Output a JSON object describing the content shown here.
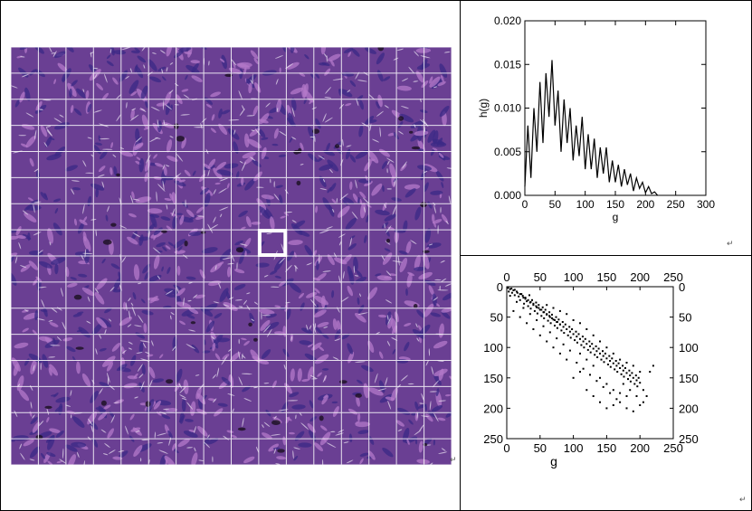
{
  "figure": {
    "tissue_image": {
      "description_icon": "histology-tile-grid-icon",
      "grid_rows": 16,
      "grid_cols": 16,
      "highlight_cell": {
        "row": 7,
        "col": 9
      },
      "colors": {
        "base": "#6a3f93",
        "nucleus": "#3b2a86",
        "fiber": "#b47ac9",
        "grid": "#ffffff"
      }
    },
    "return_marks": {
      "left": "↵",
      "top_right": "↵",
      "bottom_right": "↵"
    }
  },
  "chart_data": [
    {
      "type": "line",
      "title": "",
      "xlabel": "g",
      "ylabel": "h(g)",
      "xlim": [
        0,
        300
      ],
      "ylim": [
        0.0,
        0.02
      ],
      "xticks": [
        "0",
        "50",
        "100",
        "150",
        "200",
        "250",
        "300"
      ],
      "yticks": [
        "0.000",
        "0.005",
        "0.010",
        "0.015",
        "0.020"
      ],
      "x": [
        0,
        5,
        10,
        15,
        20,
        25,
        30,
        35,
        40,
        45,
        50,
        55,
        60,
        65,
        70,
        75,
        80,
        85,
        90,
        95,
        100,
        105,
        110,
        115,
        120,
        125,
        130,
        135,
        140,
        145,
        150,
        155,
        160,
        165,
        170,
        175,
        180,
        185,
        190,
        195,
        200,
        205,
        210,
        215,
        220
      ],
      "y": [
        0.001,
        0.008,
        0.002,
        0.01,
        0.005,
        0.013,
        0.006,
        0.014,
        0.009,
        0.0155,
        0.008,
        0.012,
        0.005,
        0.011,
        0.006,
        0.01,
        0.004,
        0.008,
        0.0045,
        0.009,
        0.003,
        0.007,
        0.003,
        0.0065,
        0.002,
        0.0055,
        0.0025,
        0.0055,
        0.0015,
        0.004,
        0.0015,
        0.0035,
        0.001,
        0.003,
        0.0012,
        0.0025,
        0.0005,
        0.002,
        0.0008,
        0.0015,
        0.0003,
        0.001,
        0.0002,
        0.0004,
        0.0
      ]
    },
    {
      "type": "scatter",
      "title": "",
      "xlabel": "g",
      "ylabel": "",
      "xlim": [
        0,
        250
      ],
      "ylim": [
        0,
        250
      ],
      "y_inverted": true,
      "xticks": [
        "0",
        "50",
        "100",
        "150",
        "200",
        "250"
      ],
      "yticks": [
        "0",
        "50",
        "100",
        "150",
        "200",
        "250"
      ],
      "points": [
        [
          2,
          2
        ],
        [
          5,
          4
        ],
        [
          8,
          10
        ],
        [
          10,
          6
        ],
        [
          12,
          14
        ],
        [
          15,
          8
        ],
        [
          18,
          16
        ],
        [
          20,
          22
        ],
        [
          22,
          12
        ],
        [
          25,
          18
        ],
        [
          26,
          28
        ],
        [
          28,
          20
        ],
        [
          30,
          24
        ],
        [
          32,
          32
        ],
        [
          34,
          14
        ],
        [
          35,
          26
        ],
        [
          36,
          36
        ],
        [
          38,
          22
        ],
        [
          40,
          30
        ],
        [
          42,
          40
        ],
        [
          44,
          26
        ],
        [
          45,
          34
        ],
        [
          46,
          44
        ],
        [
          48,
          30
        ],
        [
          50,
          38
        ],
        [
          52,
          48
        ],
        [
          54,
          34
        ],
        [
          55,
          42
        ],
        [
          56,
          52
        ],
        [
          58,
          38
        ],
        [
          60,
          46
        ],
        [
          62,
          56
        ],
        [
          64,
          42
        ],
        [
          65,
          50
        ],
        [
          66,
          60
        ],
        [
          68,
          46
        ],
        [
          70,
          54
        ],
        [
          72,
          64
        ],
        [
          74,
          50
        ],
        [
          75,
          58
        ],
        [
          76,
          68
        ],
        [
          78,
          54
        ],
        [
          80,
          62
        ],
        [
          82,
          72
        ],
        [
          84,
          58
        ],
        [
          85,
          66
        ],
        [
          86,
          76
        ],
        [
          88,
          62
        ],
        [
          90,
          70
        ],
        [
          92,
          80
        ],
        [
          94,
          66
        ],
        [
          95,
          74
        ],
        [
          96,
          84
        ],
        [
          98,
          70
        ],
        [
          100,
          78
        ],
        [
          102,
          88
        ],
        [
          104,
          74
        ],
        [
          105,
          82
        ],
        [
          106,
          92
        ],
        [
          108,
          78
        ],
        [
          110,
          86
        ],
        [
          112,
          96
        ],
        [
          114,
          82
        ],
        [
          115,
          90
        ],
        [
          116,
          100
        ],
        [
          118,
          86
        ],
        [
          120,
          94
        ],
        [
          122,
          104
        ],
        [
          124,
          90
        ],
        [
          125,
          98
        ],
        [
          126,
          108
        ],
        [
          128,
          94
        ],
        [
          130,
          102
        ],
        [
          132,
          112
        ],
        [
          134,
          98
        ],
        [
          135,
          106
        ],
        [
          136,
          116
        ],
        [
          138,
          102
        ],
        [
          140,
          110
        ],
        [
          142,
          120
        ],
        [
          144,
          106
        ],
        [
          145,
          114
        ],
        [
          146,
          124
        ],
        [
          148,
          110
        ],
        [
          150,
          118
        ],
        [
          152,
          128
        ],
        [
          154,
          114
        ],
        [
          155,
          122
        ],
        [
          156,
          132
        ],
        [
          158,
          118
        ],
        [
          160,
          126
        ],
        [
          162,
          136
        ],
        [
          164,
          122
        ],
        [
          165,
          130
        ],
        [
          166,
          140
        ],
        [
          168,
          126
        ],
        [
          170,
          134
        ],
        [
          172,
          144
        ],
        [
          174,
          130
        ],
        [
          175,
          138
        ],
        [
          176,
          148
        ],
        [
          178,
          134
        ],
        [
          180,
          142
        ],
        [
          182,
          152
        ],
        [
          184,
          138
        ],
        [
          185,
          146
        ],
        [
          186,
          156
        ],
        [
          188,
          142
        ],
        [
          190,
          150
        ],
        [
          192,
          160
        ],
        [
          194,
          146
        ],
        [
          195,
          154
        ],
        [
          196,
          164
        ],
        [
          198,
          150
        ],
        [
          200,
          158
        ],
        [
          205,
          170
        ],
        [
          210,
          180
        ],
        [
          215,
          140
        ],
        [
          220,
          130
        ],
        [
          120,
          170
        ],
        [
          130,
          180
        ],
        [
          140,
          190
        ],
        [
          150,
          200
        ],
        [
          160,
          195
        ],
        [
          170,
          190
        ],
        [
          180,
          200
        ],
        [
          190,
          205
        ],
        [
          200,
          195
        ],
        [
          100,
          150
        ],
        [
          110,
          140
        ],
        [
          90,
          120
        ],
        [
          80,
          110
        ],
        [
          70,
          100
        ],
        [
          60,
          90
        ],
        [
          50,
          80
        ],
        [
          40,
          70
        ],
        [
          30,
          60
        ],
        [
          20,
          50
        ],
        [
          10,
          40
        ],
        [
          60,
          30
        ],
        [
          70,
          35
        ],
        [
          80,
          40
        ],
        [
          90,
          45
        ],
        [
          100,
          55
        ],
        [
          110,
          60
        ],
        [
          120,
          70
        ],
        [
          130,
          80
        ],
        [
          140,
          90
        ],
        [
          150,
          100
        ],
        [
          160,
          110
        ],
        [
          170,
          120
        ],
        [
          180,
          125
        ],
        [
          190,
          130
        ],
        [
          200,
          140
        ],
        [
          140,
          150
        ],
        [
          150,
          160
        ],
        [
          160,
          170
        ],
        [
          170,
          175
        ],
        [
          180,
          180
        ],
        [
          130,
          130
        ],
        [
          120,
          120
        ],
        [
          110,
          110
        ],
        [
          105,
          125
        ],
        [
          115,
          135
        ],
        [
          125,
          145
        ],
        [
          135,
          155
        ],
        [
          145,
          165
        ],
        [
          155,
          175
        ],
        [
          165,
          185
        ],
        [
          175,
          160
        ],
        [
          185,
          170
        ],
        [
          195,
          180
        ],
        [
          205,
          190
        ],
        [
          85,
          95
        ],
        [
          95,
          105
        ],
        [
          75,
          85
        ],
        [
          65,
          75
        ],
        [
          55,
          65
        ],
        [
          45,
          55
        ],
        [
          35,
          45
        ],
        [
          25,
          35
        ],
        [
          15,
          25
        ],
        [
          5,
          15
        ],
        [
          3,
          8
        ],
        [
          7,
          3
        ],
        [
          12,
          5
        ],
        [
          16,
          10
        ],
        [
          20,
          12
        ],
        [
          24,
          15
        ],
        [
          28,
          18
        ],
        [
          32,
          22
        ],
        [
          36,
          25
        ],
        [
          40,
          28
        ],
        [
          44,
          32
        ],
        [
          48,
          35
        ],
        [
          52,
          38
        ],
        [
          56,
          42
        ],
        [
          60,
          45
        ],
        [
          64,
          48
        ],
        [
          68,
          52
        ],
        [
          72,
          55
        ],
        [
          76,
          58
        ],
        [
          80,
          62
        ]
      ]
    }
  ]
}
